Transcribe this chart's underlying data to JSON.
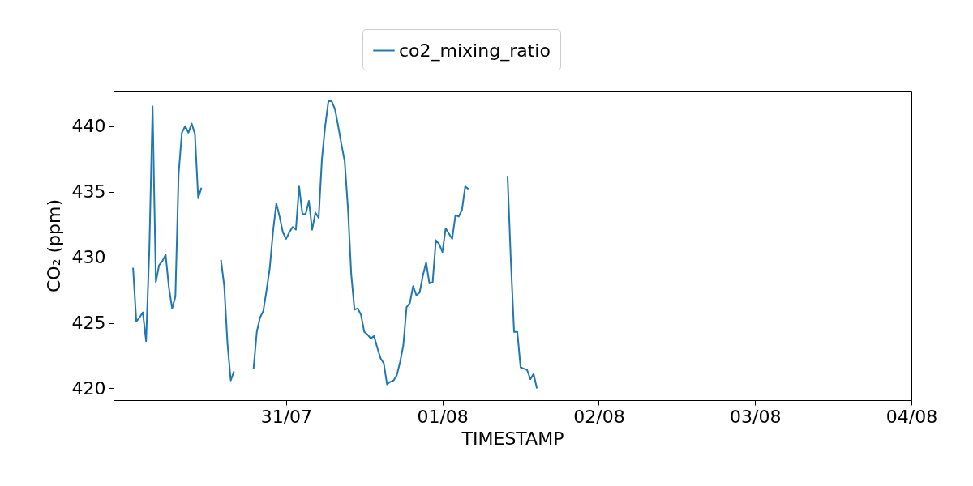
{
  "chart_data": {
    "type": "line",
    "xlabel": "TIMESTAMP",
    "ylabel": "CO₂ (ppm)",
    "x": [
      "--07-30T00:30",
      "--07-30T01:00",
      "--07-30T01:30",
      "--07-30T02:00",
      "--07-30T02:30",
      "--07-30T03:00",
      "--07-30T03:30",
      "--07-30T04:00",
      "--07-30T04:30",
      "--07-30T05:00",
      "--07-30T05:30",
      "--07-30T06:00",
      "--07-30T06:30",
      "--07-30T07:00",
      "--07-30T07:30",
      "--07-30T08:00",
      "--07-30T08:30",
      "--07-30T09:00",
      "--07-30T09:30",
      "--07-30T10:00",
      "--07-30T10:30",
      "--07-30T11:00",
      "--07-30T11:36",
      "--07-30T12:30",
      "--07-30T13:46",
      "--07-30T14:00",
      "--07-30T14:30",
      "--07-30T15:00",
      "--07-30T15:30",
      "--07-30T16:00",
      "--07-30T16:23",
      "--07-30T17:00",
      "--07-30T18:07",
      "--07-30T19:00",
      "--07-30T19:30",
      "--07-30T20:00",
      "--07-30T20:30",
      "--07-30T21:00",
      "--07-30T21:30",
      "--07-30T22:00",
      "--07-30T22:30",
      "--07-30T23:00",
      "--07-30T23:30",
      "--07-31T00:00",
      "--07-31T00:30",
      "--07-31T01:00",
      "--07-31T01:30",
      "--07-31T02:00",
      "--07-31T02:30",
      "--07-31T03:00",
      "--07-31T03:30",
      "--07-31T04:00",
      "--07-31T04:30",
      "--07-31T05:00",
      "--07-31T05:30",
      "--07-31T06:00",
      "--07-31T06:30",
      "--07-31T07:00",
      "--07-31T07:30",
      "--07-31T08:00",
      "--07-31T08:30",
      "--07-31T09:00",
      "--07-31T09:30",
      "--07-31T10:00",
      "--07-31T10:30",
      "--07-31T11:00",
      "--07-31T11:30",
      "--07-31T12:00",
      "--07-31T12:30",
      "--07-31T13:00",
      "--07-31T13:30",
      "--07-31T14:00",
      "--07-31T14:30",
      "--07-31T15:00",
      "--07-31T15:30",
      "--07-31T16:00",
      "--07-31T16:30",
      "--07-31T17:00",
      "--07-31T17:30",
      "--07-31T18:00",
      "--07-31T18:30",
      "--07-31T19:00",
      "--07-31T19:30",
      "--07-31T20:00",
      "--07-31T20:30",
      "--07-31T21:00",
      "--07-31T21:30",
      "--07-31T22:00",
      "--07-31T22:30",
      "--07-31T23:00",
      "--07-31T23:30",
      "--08-01T00:00",
      "--08-01T00:30",
      "--08-01T01:00",
      "--08-01T01:30",
      "--08-01T02:00",
      "--08-01T02:30",
      "--08-01T03:00",
      "--08-01T03:30",
      "--08-01T04:00",
      "--08-01T04:05",
      "--08-01T07:00",
      "--08-01T09:55",
      "--08-01T10:00",
      "--08-01T10:30",
      "--08-01T11:00",
      "--08-01T11:30",
      "--08-01T12:00",
      "--08-01T12:30",
      "--08-01T13:00",
      "--08-01T13:30",
      "--08-01T14:00",
      "--08-01T14:30"
    ],
    "series": [
      {
        "name": "co2_mixing_ratio",
        "color": "#1f77b4",
        "values": [
          429.2,
          425.1,
          425.4,
          425.8,
          423.6,
          430.6,
          441.5,
          428.1,
          429.4,
          429.7,
          430.2,
          427.7,
          426.1,
          427.0,
          436.4,
          439.5,
          440.0,
          439.5,
          440.2,
          439.4,
          434.5,
          435.3,
          null,
          null,
          null,
          429.8,
          427.8,
          423.4,
          420.6,
          421.3,
          null,
          null,
          null,
          421.5,
          424.3,
          425.4,
          425.9,
          427.5,
          429.2,
          432.0,
          434.1,
          433.1,
          431.9,
          431.4,
          431.9,
          432.3,
          432.1,
          435.4,
          433.3,
          433.3,
          434.3,
          432.1,
          433.4,
          433.0,
          437.5,
          440.0,
          441.9,
          441.9,
          441.3,
          440.0,
          438.6,
          437.3,
          433.7,
          428.7,
          426.0,
          426.1,
          425.6,
          424.3,
          424.1,
          423.8,
          424.0,
          423.1,
          422.3,
          421.9,
          420.3,
          420.5,
          420.6,
          421.0,
          422.0,
          423.3,
          426.2,
          426.5,
          427.8,
          427.1,
          427.3,
          428.6,
          429.6,
          428.0,
          428.1,
          431.3,
          431.0,
          430.4,
          432.2,
          431.8,
          431.4,
          433.2,
          433.1,
          433.6,
          435.4,
          435.2,
          null,
          null,
          null,
          436.2,
          429.8,
          424.3,
          424.3,
          421.6,
          421.5,
          421.4,
          420.7,
          421.1,
          420.0
        ]
      }
    ],
    "xlim": [
      "--07-29T21:30",
      "--08-04"
    ],
    "xticks": [
      {
        "value": "--07-31",
        "label": "31/07"
      },
      {
        "value": "--08-01",
        "label": "01/08"
      },
      {
        "value": "--08-02",
        "label": "02/08"
      },
      {
        "value": "--08-03",
        "label": "03/08"
      },
      {
        "value": "--08-04",
        "label": "04/08"
      }
    ],
    "ylim": [
      419.1,
      442.7
    ],
    "yticks": [
      420,
      425,
      430,
      435,
      440
    ],
    "grid": false,
    "legend": "top",
    "marker": "none",
    "line_style": "solid"
  }
}
